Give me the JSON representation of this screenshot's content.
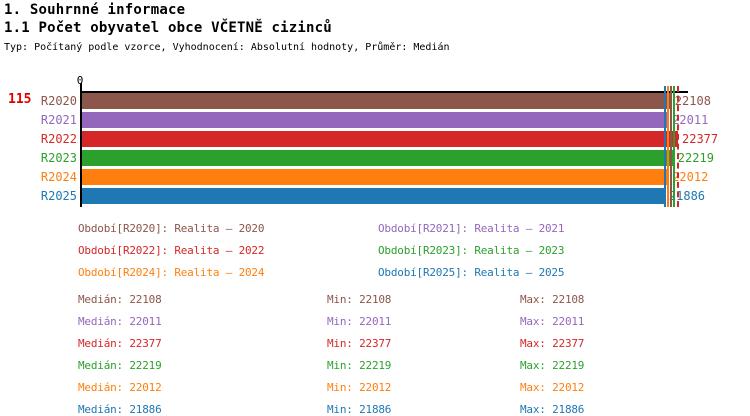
{
  "header": {
    "title": "1. Souhrnné informace",
    "subtitle": "1.1 Počet obyvatel obce VČETNĚ cizinců",
    "meta": "Typ: Počítaný podle vzorce, Vyhodnocení: Absolutní hodnoty, Průměr: Medián"
  },
  "chart": {
    "row_number": "115",
    "row_number_color": "#dd0000",
    "zero_tick_label": "0",
    "axis_color": "#000000"
  },
  "chart_data": {
    "type": "bar",
    "orientation": "horizontal",
    "title": "1.1 Počet obyvatel obce VČETNĚ cizinců",
    "categories": [
      "R2020",
      "R2021",
      "R2022",
      "R2023",
      "R2024",
      "R2025"
    ],
    "values": [
      22108,
      22011,
      22377,
      22219,
      22012,
      21886
    ],
    "colors": [
      "#8c564b",
      "#9467bd",
      "#d62728",
      "#2ca02c",
      "#ff7f0e",
      "#1f77b4"
    ],
    "xlim": [
      0,
      22377
    ],
    "xlabel": "",
    "ylabel": "",
    "grid": false,
    "value_marker_lines": true,
    "dashed_marker_index": 2,
    "legend_position": "below"
  },
  "legend": {
    "items": [
      {
        "label": "Období[R2020]: Realita – 2020",
        "color": "#8c564b"
      },
      {
        "label": "Období[R2021]: Realita – 2021",
        "color": "#9467bd"
      },
      {
        "label": "Období[R2022]: Realita – 2022",
        "color": "#d62728"
      },
      {
        "label": "Období[R2023]: Realita – 2023",
        "color": "#2ca02c"
      },
      {
        "label": "Období[R2024]: Realita – 2024",
        "color": "#ff7f0e"
      },
      {
        "label": "Období[R2025]: Realita – 2025",
        "color": "#1f77b4"
      }
    ]
  },
  "stats": {
    "median_label": "Medián",
    "min_label": "Min",
    "max_label": "Max",
    "rows": [
      {
        "median": 22108,
        "min": 22108,
        "max": 22108,
        "color": "#8c564b"
      },
      {
        "median": 22011,
        "min": 22011,
        "max": 22011,
        "color": "#9467bd"
      },
      {
        "median": 22377,
        "min": 22377,
        "max": 22377,
        "color": "#d62728"
      },
      {
        "median": 22219,
        "min": 22219,
        "max": 22219,
        "color": "#2ca02c"
      },
      {
        "median": 22012,
        "min": 22012,
        "max": 22012,
        "color": "#ff7f0e"
      },
      {
        "median": 21886,
        "min": 21886,
        "max": 21886,
        "color": "#1f77b4"
      }
    ]
  }
}
